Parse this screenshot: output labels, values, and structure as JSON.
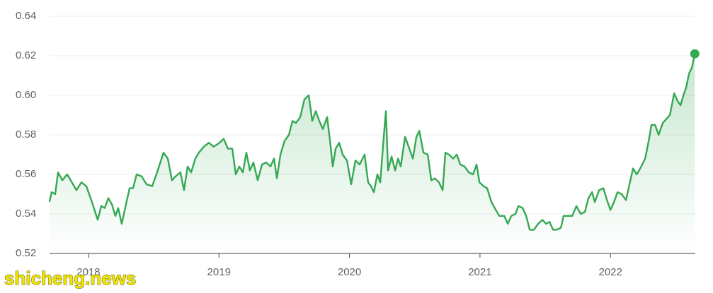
{
  "chart_data": {
    "type": "line",
    "color": "#34a853",
    "grid": true,
    "watermark": "shicheng.news",
    "xlim": [
      2017.702,
      2022.65
    ],
    "xticks": [
      2018,
      2019,
      2020,
      2021,
      2022
    ],
    "ylim": [
      0.52,
      0.64
    ],
    "yticks": [
      0.52,
      0.54,
      0.56,
      0.58,
      {
        "value": 0.6,
        "label": "0.60"
      },
      0.62,
      0.64
    ],
    "x": [
      2017.702,
      2017.718,
      2017.745,
      2017.767,
      2017.8,
      2017.837,
      2017.864,
      2017.908,
      2017.946,
      2017.984,
      2018.027,
      2018.071,
      2018.098,
      2018.125,
      2018.152,
      2018.179,
      2018.206,
      2018.228,
      2018.255,
      2018.288,
      2018.315,
      2018.342,
      2018.369,
      2018.407,
      2018.445,
      2018.488,
      2018.526,
      2018.575,
      2018.608,
      2018.64,
      2018.667,
      2018.705,
      2018.732,
      2018.76,
      2018.787,
      2018.819,
      2018.846,
      2018.884,
      2018.922,
      2018.96,
      2019.004,
      2019.036,
      2019.069,
      2019.102,
      2019.129,
      2019.156,
      2019.183,
      2019.21,
      2019.237,
      2019.264,
      2019.297,
      2019.33,
      2019.362,
      2019.395,
      2019.422,
      2019.444,
      2019.471,
      2019.503,
      2019.536,
      2019.563,
      2019.59,
      2019.623,
      2019.655,
      2019.688,
      2019.715,
      2019.742,
      2019.769,
      2019.796,
      2019.829,
      2019.851,
      2019.872,
      2019.894,
      2019.921,
      2019.948,
      2019.981,
      2020.013,
      2020.046,
      2020.078,
      2020.116,
      2020.143,
      2020.165,
      2020.187,
      2020.214,
      2020.236,
      2020.258,
      2020.279,
      2020.296,
      2020.323,
      2020.35,
      2020.372,
      2020.393,
      2020.426,
      2020.459,
      2020.486,
      2020.513,
      2020.535,
      2020.567,
      2020.6,
      2020.627,
      2020.654,
      2020.686,
      2020.714,
      2020.735,
      2020.763,
      2020.795,
      2020.822,
      2020.849,
      2020.882,
      2020.914,
      2020.947,
      2020.974,
      2020.996,
      2021.028,
      2021.055,
      2021.088,
      2021.121,
      2021.148,
      2021.186,
      2021.213,
      2021.24,
      2021.272,
      2021.294,
      2021.327,
      2021.354,
      2021.381,
      2021.413,
      2021.446,
      2021.479,
      2021.506,
      2021.533,
      2021.56,
      2021.587,
      2021.62,
      2021.641,
      2021.674,
      2021.707,
      2021.739,
      2021.772,
      2021.804,
      2021.831,
      2021.859,
      2021.88,
      2021.913,
      2021.946,
      2021.973,
      2022.0,
      2022.027,
      2022.054,
      2022.086,
      2022.119,
      2022.146,
      2022.173,
      2022.201,
      2022.228,
      2022.266,
      2022.293,
      2022.314,
      2022.342,
      2022.369,
      2022.401,
      2022.428,
      2022.455,
      2022.488,
      2022.515,
      2022.537,
      2022.559,
      2022.58,
      2022.602,
      2022.624,
      2022.646
    ],
    "values": [
      0.5464,
      0.551,
      0.55,
      0.561,
      0.557,
      0.56,
      0.557,
      0.552,
      0.556,
      0.554,
      0.546,
      0.537,
      0.544,
      0.543,
      0.548,
      0.545,
      0.539,
      0.543,
      0.535,
      0.545,
      0.553,
      0.553,
      0.56,
      0.559,
      0.555,
      0.554,
      0.561,
      0.571,
      0.568,
      0.557,
      0.559,
      0.561,
      0.552,
      0.564,
      0.561,
      0.568,
      0.571,
      0.574,
      0.576,
      0.574,
      0.576,
      0.578,
      0.573,
      0.573,
      0.56,
      0.564,
      0.561,
      0.571,
      0.562,
      0.566,
      0.557,
      0.565,
      0.566,
      0.564,
      0.568,
      0.558,
      0.57,
      0.577,
      0.58,
      0.587,
      0.586,
      0.589,
      0.598,
      0.6,
      0.587,
      0.592,
      0.587,
      0.583,
      0.589,
      0.577,
      0.564,
      0.573,
      0.576,
      0.57,
      0.567,
      0.555,
      0.567,
      0.565,
      0.57,
      0.556,
      0.554,
      0.551,
      0.56,
      0.556,
      0.575,
      0.592,
      0.562,
      0.569,
      0.562,
      0.568,
      0.564,
      0.579,
      0.573,
      0.568,
      0.579,
      0.582,
      0.571,
      0.57,
      0.557,
      0.558,
      0.556,
      0.552,
      0.571,
      0.57,
      0.568,
      0.57,
      0.565,
      0.564,
      0.561,
      0.56,
      0.565,
      0.556,
      0.554,
      0.553,
      0.546,
      0.542,
      0.539,
      0.539,
      0.535,
      0.539,
      0.54,
      0.544,
      0.543,
      0.539,
      0.532,
      0.532,
      0.535,
      0.537,
      0.535,
      0.536,
      0.532,
      0.532,
      0.533,
      0.539,
      0.539,
      0.539,
      0.544,
      0.54,
      0.541,
      0.548,
      0.551,
      0.546,
      0.552,
      0.553,
      0.547,
      0.542,
      0.546,
      0.551,
      0.55,
      0.547,
      0.555,
      0.563,
      0.56,
      0.563,
      0.568,
      0.577,
      0.585,
      0.585,
      0.58,
      0.586,
      0.588,
      0.59,
      0.601,
      0.597,
      0.595,
      0.6,
      0.604,
      0.611,
      0.614,
      0.621
    ]
  }
}
